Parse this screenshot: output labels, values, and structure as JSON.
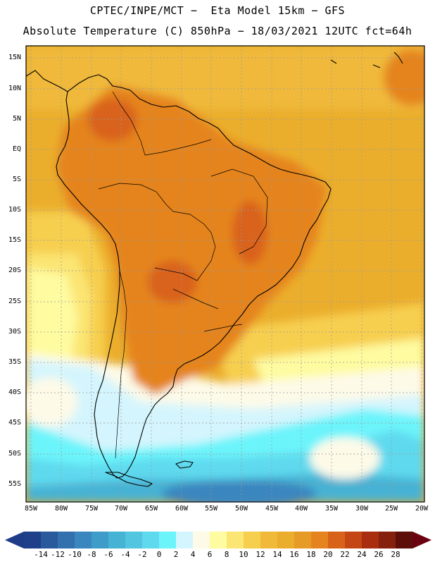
{
  "header": {
    "line1": "CPTEC/INPE/MCT −  Eta Model 15km − GFS",
    "line2": "Absolute Temperature (C) 850hPa − 18/03/2021 12UTC fct=64h"
  },
  "lat_labels": [
    "15N",
    "10N",
    "5N",
    "EQ",
    "5S",
    "10S",
    "15S",
    "20S",
    "25S",
    "30S",
    "35S",
    "40S",
    "45S",
    "50S",
    "55S"
  ],
  "lon_labels": [
    "85W",
    "80W",
    "75W",
    "70W",
    "65W",
    "60W",
    "55W",
    "50W",
    "45W",
    "40W",
    "35W",
    "30W",
    "25W",
    "20W"
  ],
  "colorbar": {
    "labels": [
      "-14",
      "-12",
      "-10",
      "-8",
      "-6",
      "-4",
      "-2",
      "0",
      "2",
      "4",
      "6",
      "8",
      "10",
      "12",
      "14",
      "16",
      "18",
      "20",
      "22",
      "24",
      "26",
      "28"
    ],
    "colors": [
      "#1f3f8a",
      "#2a5a9c",
      "#3270ae",
      "#3a86bf",
      "#3f9cc9",
      "#46b2d4",
      "#52c6e0",
      "#5fd9ee",
      "#6cf4fb",
      "#d4f5fd",
      "#fdfae8",
      "#fefba0",
      "#fbe573",
      "#f7cf4f",
      "#f0b93a",
      "#ebae2c",
      "#e69a27",
      "#e5841f",
      "#d9621a",
      "#c44614",
      "#a82e0f",
      "#85200c",
      "#5e0e08"
    ],
    "left_arrow_color": "#1f3c88",
    "right_arrow_color": "#6b0010"
  },
  "map_colors": {
    "tropical_land": "#e5841f",
    "hot_core": "#d9621a",
    "warm": "#f0b93a",
    "ocean_subtropic": "#ebae2c",
    "mild": "#f7cf4f",
    "cool": "#fbe573",
    "pale": "#fefba0",
    "cream": "#fdfae8",
    "cold_cyan": "#6cf4fb",
    "cyan2": "#5fd9ee",
    "blue": "#46b2d4",
    "deep_blue": "#3a86bf",
    "ice": "#d4f5fd"
  }
}
